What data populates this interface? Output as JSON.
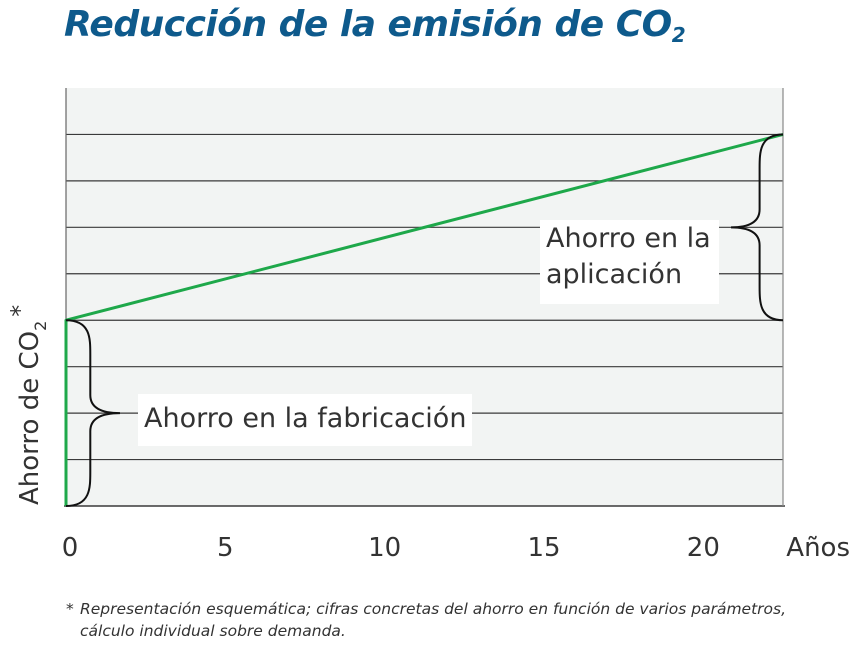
{
  "title": {
    "text": "Reducción de la emisión de CO",
    "sub": "2"
  },
  "colors": {
    "title": "#0e5a8c",
    "plot_bg": "#f2f4f3",
    "grid": "#3a3a3a",
    "line": "#1ea84a",
    "text": "#333333",
    "brace": "#111111"
  },
  "chart_data": {
    "type": "line",
    "ylabel_main": "Ahorro de CO",
    "ylabel_sub": "2",
    "ylabel_star": "*",
    "x_unit_label": "Años",
    "xlim": [
      0,
      22.5
    ],
    "ylim": [
      0,
      9
    ],
    "x_ticks": [
      {
        "value": 0,
        "label": "0"
      },
      {
        "value": 5,
        "label": "5"
      },
      {
        "value": 10,
        "label": "10"
      },
      {
        "value": 15,
        "label": "15"
      },
      {
        "value": 20,
        "label": "20"
      }
    ],
    "y_gridlines": [
      1,
      2,
      3,
      4,
      5,
      6,
      7,
      8
    ],
    "grid": true,
    "series": [
      {
        "x": [
          0,
          0,
          22.5
        ],
        "y": [
          0,
          4,
          8
        ]
      }
    ],
    "annotations": [
      {
        "id": "fabricacion",
        "lines": [
          "Ahorro en la fabricación"
        ],
        "y_from": 0,
        "y_to": 4,
        "at_x": 0
      },
      {
        "id": "aplicacion",
        "lines": [
          "Ahorro en la",
          "aplicación"
        ],
        "y_from": 4,
        "y_to": 8,
        "at_x": 22.5
      }
    ]
  },
  "footnote": {
    "star": "*",
    "line1": "Representación esquemática; cifras concretas del ahorro en función de varios parámetros,",
    "line2": "cálculo individual sobre demanda."
  }
}
